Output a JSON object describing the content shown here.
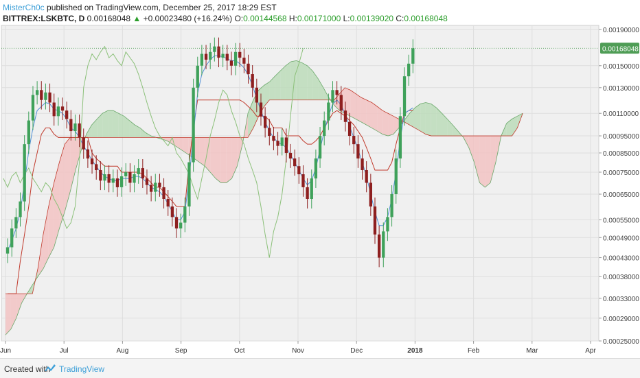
{
  "header": {
    "author": "MisterCh0c",
    "published_text": "published on TradingView.com, December 25, 2017 18:29 EST",
    "symbol": "BITTREX:LSKBTC, D",
    "last": "0.00168048",
    "change_arrow": "▲",
    "change": "+0.00023480 (+16.24%)",
    "o_label": "O:",
    "o_val": "0.00144568",
    "h_label": "H:",
    "h_val": "0.00171000",
    "l_label": "L:",
    "l_val": "0.00139020",
    "c_label": "C:",
    "c_val": "0.00168048"
  },
  "footer": {
    "created_with": "Created with",
    "brand": "TradingView",
    "logo_icon": "tradingview-logo-icon"
  },
  "colors": {
    "background": "#f0f0f0",
    "up_candle": "#3fa15a",
    "down_candle": "#8e1f1f",
    "tenkan": "#4f8fd6",
    "kijun": "#c0392b",
    "chikou": "#8bc079",
    "cloud_bull": "#b9dbb7",
    "cloud_bear": "#f2c1c1",
    "last_price_tag": "#4f9d56",
    "accent_blue": "#3ea0d8"
  },
  "chart_data": {
    "type": "candlestick",
    "title": "BITTREX:LSKBTC, D",
    "xlabel": "",
    "ylabel": "",
    "x_ticks": [
      "Jun",
      "Jul",
      "Aug",
      "Sep",
      "Oct",
      "Nov",
      "Dec",
      "2018",
      "Feb",
      "Mar",
      "Apr"
    ],
    "y_ticks": [
      "0.00190000",
      "0.00150000",
      "0.00130000",
      "0.00110000",
      "0.00095000",
      "0.00085000",
      "0.00075000",
      "0.00065000",
      "0.00055000",
      "0.00049000",
      "0.00043000",
      "0.00038000",
      "0.00033000",
      "0.00029000",
      "0.00025000"
    ],
    "y_scale": "log",
    "ylim": [
      0.00025,
      0.00195
    ],
    "grid": true,
    "last_price_label": "0.00168048",
    "indicator": "Ichimoku Cloud",
    "closes": [
      0.00046,
      0.00052,
      0.00056,
      0.00062,
      0.0009,
      0.00105,
      0.00124,
      0.00128,
      0.0012,
      0.00126,
      0.00118,
      0.00108,
      0.00115,
      0.00112,
      0.00106,
      0.00098,
      0.00103,
      0.00094,
      0.00087,
      0.00082,
      0.00079,
      0.00076,
      0.00071,
      0.00074,
      0.0007,
      0.00072,
      0.00068,
      0.00073,
      0.00075,
      0.0007,
      0.00074,
      0.00077,
      0.00072,
      0.00069,
      0.00066,
      0.0007,
      0.00068,
      0.00063,
      0.0006,
      0.00056,
      0.00052,
      0.00054,
      0.0006,
      0.0008,
      0.0013,
      0.0015,
      0.00162,
      0.00156,
      0.00164,
      0.0017,
      0.00158,
      0.00162,
      0.00155,
      0.0015,
      0.00164,
      0.00158,
      0.00152,
      0.00142,
      0.0013,
      0.00118,
      0.00108,
      0.001,
      0.00095,
      0.00092,
      0.00089,
      0.00094,
      0.00085,
      0.00082,
      0.00078,
      0.00074,
      0.00068,
      0.00063,
      0.00072,
      0.00082,
      0.00095,
      0.00105,
      0.00118,
      0.00128,
      0.00124,
      0.00112,
      0.00104,
      0.00095,
      0.0009,
      0.00082,
      0.00076,
      0.0007,
      0.0006,
      0.0005,
      0.00043,
      0.00051,
      0.00056,
      0.00065,
      0.00082,
      0.00108,
      0.0014,
      0.00152,
      0.00168
    ],
    "tenkan": [
      0.00045,
      0.00048,
      0.00052,
      0.00058,
      0.0007,
      0.00086,
      0.001,
      0.00112,
      0.00115,
      0.00118,
      0.00117,
      0.00113,
      0.00112,
      0.0011,
      0.00106,
      0.001,
      0.00098,
      0.00094,
      0.00089,
      0.00085,
      0.00081,
      0.00078,
      0.00075,
      0.00073,
      0.00072,
      0.00071,
      0.00071,
      0.00072,
      0.00072,
      0.00072,
      0.00073,
      0.00073,
      0.00072,
      0.0007,
      0.00068,
      0.00067,
      0.00066,
      0.00064,
      0.00061,
      0.00058,
      0.00055,
      0.00055,
      0.00058,
      0.00072,
      0.00096,
      0.00125,
      0.00142,
      0.0015,
      0.00156,
      0.0016,
      0.0016,
      0.00159,
      0.00157,
      0.00155,
      0.00155,
      0.00152,
      0.00148,
      0.00141,
      0.00132,
      0.00121,
      0.00112,
      0.00104,
      0.00098,
      0.00094,
      0.00091,
      0.0009,
      0.00088,
      0.00084,
      0.0008,
      0.00076,
      0.00072,
      0.00069,
      0.00071,
      0.00077,
      0.00087,
      0.00098,
      0.00108,
      0.00117,
      0.0012,
      0.00116,
      0.00109,
      0.00101,
      0.00094,
      0.00087,
      0.0008,
      0.00073,
      0.00065,
      0.00058,
      0.00053,
      0.00053,
      0.00056,
      0.00063,
      0.00075,
      0.00093,
      0.0011,
      0.00112,
      0.00114
    ],
    "kijun": [
      0.00034,
      0.00034,
      0.00034,
      0.00042,
      0.0005,
      0.0006,
      0.00075,
      0.00085,
      0.00096,
      0.001,
      0.001,
      0.00096,
      0.00094,
      0.00094,
      0.00094,
      0.00094,
      0.00094,
      0.00094,
      0.00094,
      0.00094,
      0.00085,
      0.00082,
      0.0008,
      0.00078,
      0.00078,
      0.00078,
      0.00078,
      0.00075,
      0.00075,
      0.00075,
      0.00075,
      0.00075,
      0.00074,
      0.00072,
      0.0007,
      0.00068,
      0.00068,
      0.00066,
      0.00064,
      0.00062,
      0.0006,
      0.0006,
      0.0006,
      0.0008,
      0.001,
      0.0012,
      0.0012,
      0.0012,
      0.0012,
      0.0012,
      0.0012,
      0.0012,
      0.0012,
      0.0012,
      0.0012,
      0.0012,
      0.00118,
      0.00115,
      0.00112,
      0.00108,
      0.00108,
      0.00108,
      0.00105,
      0.001,
      0.001,
      0.001,
      0.00095,
      0.00095,
      0.00095,
      0.00095,
      0.00092,
      0.0009,
      0.0009,
      0.00092,
      0.00095,
      0.001,
      0.00105,
      0.0011,
      0.00112,
      0.0011,
      0.00108,
      0.00105,
      0.00102,
      0.00098,
      0.00094,
      0.00088,
      0.00082,
      0.00076,
      0.00076,
      0.00076,
      0.00076,
      0.0008,
      0.0009,
      0.001,
      0.0011,
      0.00112,
      0.00112
    ],
    "span_a": [
      0.00026,
      0.00027,
      0.00029,
      0.00032,
      0.00034,
      0.00036,
      0.00038,
      0.0004,
      0.00043,
      0.00046,
      0.00052,
      0.00058,
      0.00066,
      0.00076,
      0.00086,
      0.00096,
      0.00102,
      0.00106,
      0.0011,
      0.00112,
      0.00112,
      0.0011,
      0.00108,
      0.00105,
      0.00102,
      0.001,
      0.00097,
      0.00095,
      0.00094,
      0.00093,
      0.00092,
      0.0009,
      0.00088,
      0.00086,
      0.00084,
      0.00082,
      0.0008,
      0.00078,
      0.00075,
      0.00072,
      0.0007,
      0.0007,
      0.00072,
      0.00078,
      0.0009,
      0.0011,
      0.0012,
      0.00128,
      0.00132,
      0.00135,
      0.0014,
      0.00145,
      0.0015,
      0.00154,
      0.00155,
      0.00153,
      0.0015,
      0.00145,
      0.00138,
      0.0013,
      0.00122,
      0.00116,
      0.00112,
      0.0011,
      0.00108,
      0.00106,
      0.00104,
      0.00102,
      0.001,
      0.00098,
      0.00096,
      0.00095,
      0.00096,
      0.001,
      0.00105,
      0.0011,
      0.00114,
      0.00117,
      0.00118,
      0.00117,
      0.00114,
      0.0011,
      0.00106,
      0.00102,
      0.00098,
      0.00094,
      0.00088,
      0.0008,
      0.0007,
      0.00068,
      0.0007,
      0.0008,
      0.00095,
      0.00103,
      0.00106,
      0.00108,
      0.0011
    ],
    "span_b": [
      0.00034,
      0.00034,
      0.00034,
      0.00034,
      0.00034,
      0.00034,
      0.0004,
      0.0005,
      0.0006,
      0.0007,
      0.0008,
      0.0009,
      0.00094,
      0.00094,
      0.00094,
      0.00094,
      0.00094,
      0.00094,
      0.00094,
      0.00094,
      0.00094,
      0.00094,
      0.00094,
      0.00094,
      0.00094,
      0.00094,
      0.00094,
      0.00094,
      0.00094,
      0.00094,
      0.00094,
      0.00094,
      0.00094,
      0.00094,
      0.00094,
      0.00094,
      0.00094,
      0.00094,
      0.00094,
      0.00094,
      0.00094,
      0.00094,
      0.00094,
      0.00094,
      0.00094,
      0.00094,
      0.001,
      0.00108,
      0.00115,
      0.0012,
      0.0012,
      0.0012,
      0.0012,
      0.0012,
      0.0012,
      0.0012,
      0.0012,
      0.0012,
      0.0012,
      0.0012,
      0.0012,
      0.0012,
      0.00125,
      0.0013,
      0.00128,
      0.00125,
      0.00122,
      0.0012,
      0.00118,
      0.00115,
      0.00112,
      0.0011,
      0.00108,
      0.00106,
      0.00104,
      0.00102,
      0.001,
      0.00098,
      0.00096,
      0.00095,
      0.00095,
      0.00095,
      0.00095,
      0.00095,
      0.00095,
      0.00095,
      0.00095,
      0.00095,
      0.00095,
      0.00095,
      0.00095,
      0.00095,
      0.00095,
      0.00095,
      0.00095,
      0.001,
      0.0011
    ]
  }
}
